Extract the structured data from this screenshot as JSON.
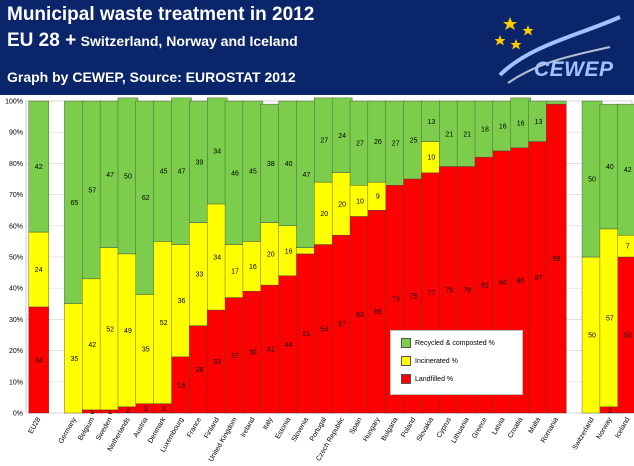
{
  "header": {
    "title_line1": "Municipal waste treatment in 2012",
    "title_line2_big": "EU 28 +",
    "title_line2_small": "Switzerland, Norway and Iceland",
    "subtitle": "Graph by CEWEP, Source: EUROSTAT 2012",
    "logo_text": "CEWEP"
  },
  "colors": {
    "recycled": "#7ccd4c",
    "incinerated": "#ffff00",
    "landfilled": "#ff0000",
    "header_bg": "#0a2569"
  },
  "legend": {
    "recycled": "Recycled & composted %",
    "incinerated": "Incinerated %",
    "landfilled": "Landfilled %"
  },
  "chart_data": {
    "type": "bar",
    "stacked": true,
    "title": "Municipal waste treatment in 2012",
    "ylim": [
      0,
      100
    ],
    "ytick_suffix": "%",
    "categories": [
      "EU28",
      "Germany",
      "Belgium",
      "Sweden",
      "Netherlands",
      "Austria",
      "Denmark",
      "Luxembourg",
      "France",
      "Finland",
      "United Kingdom",
      "Ireland",
      "Italy",
      "Estonia",
      "Slovenia",
      "Portugal",
      "Czech Republic",
      "Spain",
      "Hungary",
      "Bulgaria",
      "Poland",
      "Slovakia",
      "Cyprus",
      "Lithuania",
      "Greece",
      "Latvia",
      "Croatia",
      "Malta",
      "Romania",
      "Switzerland",
      "Norway",
      "Iceland"
    ],
    "series": [
      {
        "name": "Landfilled %",
        "values": [
          34,
          0,
          1,
          1,
          2,
          3,
          3,
          18,
          28,
          33,
          37,
          39,
          41,
          44,
          51,
          54,
          57,
          63,
          65,
          73,
          75,
          77,
          79,
          79,
          82,
          84,
          85,
          87,
          99,
          0,
          2,
          50
        ],
        "labels": [
          "34",
          "0",
          "1",
          "1",
          "2",
          "3",
          "3",
          "18",
          "28",
          "33",
          "37",
          "39",
          "41",
          "44",
          "51",
          "54",
          "57",
          "63",
          "65",
          "73",
          "75",
          "77",
          "79",
          "79",
          "82",
          "84",
          "85",
          "87",
          "99",
          "0",
          "2",
          "50"
        ]
      },
      {
        "name": "Incinerated %",
        "values": [
          24,
          35,
          42,
          52,
          49,
          35,
          52,
          36,
          33,
          34,
          17,
          16,
          20,
          16,
          2,
          20,
          20,
          10,
          9,
          0,
          0,
          10,
          0,
          0,
          0,
          0,
          0,
          0,
          0,
          50,
          57,
          7
        ],
        "labels": [
          "24",
          "35",
          "42",
          "52",
          "49",
          "35",
          "52",
          "36",
          "33",
          "34",
          "17",
          "16",
          "20",
          "16",
          "",
          "20",
          "20",
          "10",
          "9",
          "0",
          "",
          "10",
          "0",
          "",
          "0",
          "0",
          "0",
          "",
          "",
          "50",
          "57",
          "7"
        ]
      },
      {
        "name": "Recycled & composted %",
        "values": [
          42,
          65,
          57,
          47,
          50,
          62,
          45,
          47,
          39,
          34,
          46,
          45,
          38,
          40,
          47,
          27,
          24,
          27,
          26,
          27,
          25,
          13,
          21,
          21,
          18,
          16,
          16,
          13,
          1,
          50,
          40,
          42
        ],
        "labels": [
          "42",
          "65",
          "57",
          "47",
          "50",
          "62",
          "45",
          "47",
          "39",
          "34",
          "46",
          "45",
          "38",
          "40",
          "47",
          "27",
          "24",
          "27",
          "26",
          "27",
          "25",
          "13",
          "21",
          "21",
          "18",
          "16",
          "16",
          "13",
          "",
          "50",
          "40",
          "42"
        ]
      }
    ]
  }
}
